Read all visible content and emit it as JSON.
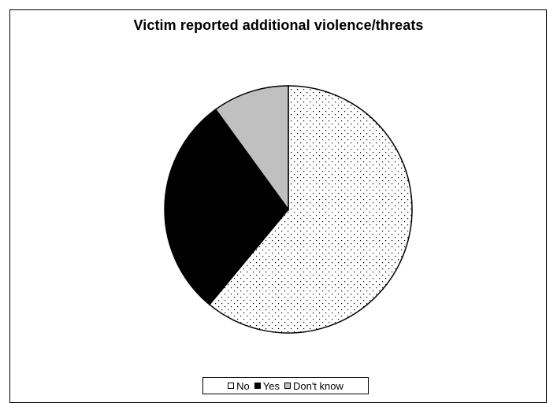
{
  "chart_data": {
    "type": "pie",
    "title": "Victim reported additional violence/threats",
    "categories": [
      "No",
      "Yes",
      "Don't know"
    ],
    "values": [
      61,
      29,
      10
    ],
    "colors": {
      "No": "#ffffff",
      "Yes": "#000000",
      "Don't know": "#c0c0c0"
    },
    "patterns": {
      "No": "dotted",
      "Yes": "solid",
      "Don't know": "solid"
    },
    "legend_position": "bottom"
  }
}
